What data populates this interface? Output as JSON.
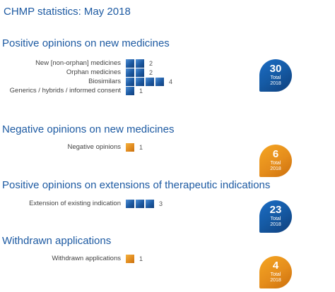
{
  "page": {
    "title": "CHMP statistics: May 2018"
  },
  "chart_data": [
    {
      "type": "bar",
      "title": "Positive opinions on new medicines",
      "categories": [
        "New [non-orphan] medicines",
        "Orphan medicines",
        "Biosimilars",
        "Generics / hybrids / informed consent"
      ],
      "values": [
        2,
        2,
        4,
        1
      ],
      "total_value": "30",
      "total_label": "Total",
      "total_year": "2018",
      "color": "#1d5aa2"
    },
    {
      "type": "bar",
      "title": "Negative opinions on new medicines",
      "categories": [
        "Negative opinions"
      ],
      "values": [
        1
      ],
      "total_value": "6",
      "total_label": "Total",
      "total_year": "2018",
      "color": "#e58d1c"
    },
    {
      "type": "bar",
      "title": "Positive opinions on extensions of therapeutic indications",
      "categories": [
        "Extension of existing indication"
      ],
      "values": [
        3
      ],
      "total_value": "23",
      "total_label": "Total",
      "total_year": "2018",
      "color": "#1d5aa2"
    },
    {
      "type": "bar",
      "title": "Withdrawn applications",
      "categories": [
        "Withdrawn applications"
      ],
      "values": [
        1
      ],
      "total_value": "4",
      "total_label": "Total",
      "total_year": "2018",
      "color": "#e58d1c"
    }
  ]
}
